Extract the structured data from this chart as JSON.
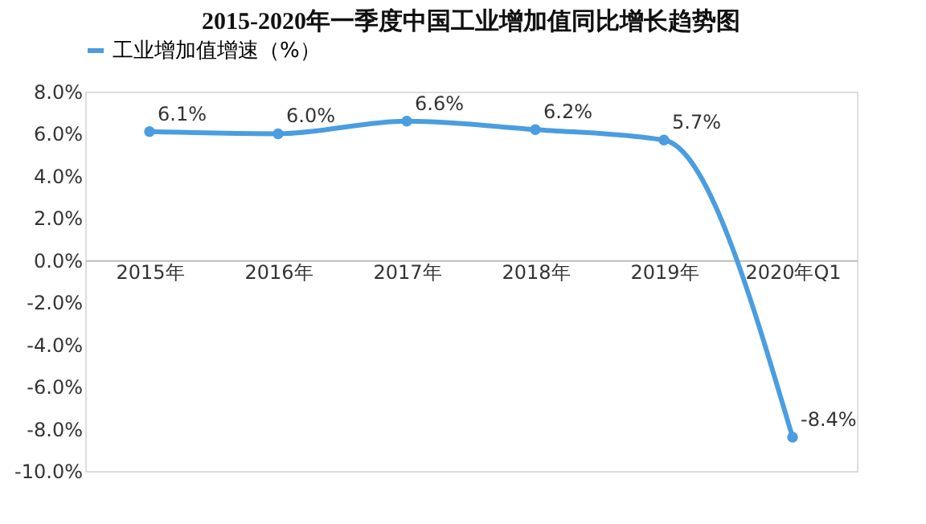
{
  "chart_data": {
    "type": "line",
    "title": "2015-2020年一季度中国工业增加值同比增长趋势图",
    "categories": [
      "2015年",
      "2016年",
      "2017年",
      "2018年",
      "2019年",
      "2020年Q1"
    ],
    "series": [
      {
        "name": "工业增加值增速（%）",
        "color": "#4a9de0",
        "values": [
          6.1,
          6.0,
          6.6,
          6.2,
          5.7,
          -8.4
        ],
        "value_labels": [
          "6.1%",
          "6.0%",
          "6.6%",
          "6.2%",
          "5.7%",
          "-8.4%"
        ]
      }
    ],
    "ylim": [
      -10,
      8
    ],
    "yticks": [
      {
        "value": 8,
        "label": "8.0%"
      },
      {
        "value": 6,
        "label": "6.0%"
      },
      {
        "value": 4,
        "label": "4.0%"
      },
      {
        "value": 2,
        "label": "2.0%"
      },
      {
        "value": 0,
        "label": "0.0%"
      },
      {
        "value": -2,
        "label": "-2.0%"
      },
      {
        "value": -4,
        "label": "-4.0%"
      },
      {
        "value": -6,
        "label": "-6.0%"
      },
      {
        "value": -8,
        "label": "-8.0%"
      },
      {
        "value": -10,
        "label": "-10.0%"
      }
    ],
    "legend": "top",
    "marker": "circle",
    "line_style": "solid",
    "grid": false
  }
}
